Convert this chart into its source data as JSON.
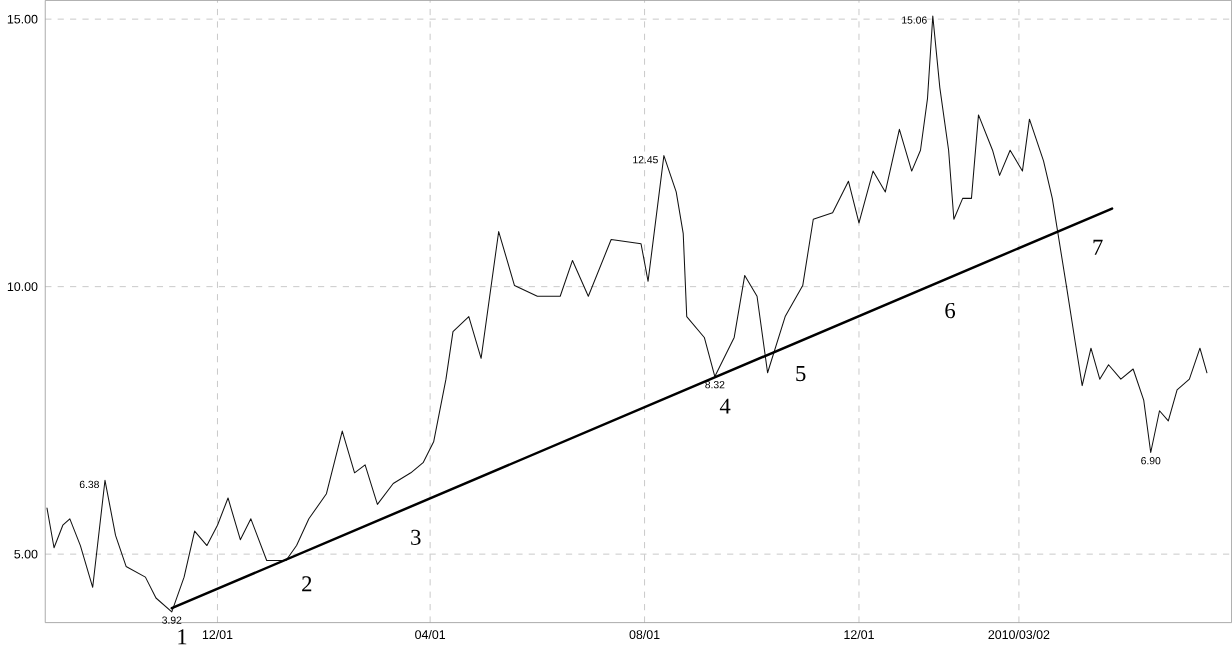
{
  "chart_data": {
    "type": "line",
    "xlim": [
      "2008-08-25",
      "2010-07-01"
    ],
    "ylim": [
      3.72,
      15.35
    ],
    "xticks": [
      {
        "value": "2008-12-01",
        "label": "12/01"
      },
      {
        "value": "2009-04-01",
        "label": "04/01"
      },
      {
        "value": "2009-08-01",
        "label": "08/01"
      },
      {
        "value": "2009-12-01",
        "label": "12/01"
      },
      {
        "value": "2010-03-02",
        "label": "2010/03/02"
      }
    ],
    "yticks": [
      {
        "value": 5,
        "label": "5.00"
      },
      {
        "value": 10,
        "label": "10.00"
      },
      {
        "value": 15,
        "label": "15.00"
      }
    ],
    "grid": true,
    "marker": "none",
    "line_style": "solid",
    "series": [
      {
        "color": "#111111",
        "x": [
          "2008-08-26",
          "2008-08-30",
          "2008-09-04",
          "2008-09-08",
          "2008-09-14",
          "2008-09-21",
          "2008-09-28",
          "2008-10-04",
          "2008-10-10",
          "2008-10-21",
          "2008-10-27",
          "2008-11-05",
          "2008-11-12",
          "2008-11-18",
          "2008-11-25",
          "2008-12-01",
          "2008-12-07",
          "2008-12-14",
          "2008-12-20",
          "2008-12-29",
          "2009-01-09",
          "2009-01-15",
          "2009-01-22",
          "2009-02-01",
          "2009-02-10",
          "2009-02-17",
          "2009-02-23",
          "2009-03-02",
          "2009-03-11",
          "2009-03-21",
          "2009-03-28",
          "2009-04-03",
          "2009-04-10",
          "2009-04-14",
          "2009-04-23",
          "2009-04-30",
          "2009-05-10",
          "2009-05-19",
          "2009-06-01",
          "2009-06-14",
          "2009-06-21",
          "2009-06-30",
          "2009-07-13",
          "2009-07-30",
          "2009-08-03",
          "2009-08-12",
          "2009-08-19",
          "2009-08-23",
          "2009-08-25",
          "2009-09-04",
          "2009-09-10",
          "2009-09-21",
          "2009-09-27",
          "2009-10-04",
          "2009-10-10",
          "2009-10-20",
          "2009-10-30",
          "2009-11-05",
          "2009-11-16",
          "2009-11-25",
          "2009-12-01",
          "2009-12-09",
          "2009-12-16",
          "2009-12-24",
          "2009-12-31",
          "2010-01-05",
          "2010-01-09",
          "2010-01-12",
          "2010-01-16",
          "2010-01-21",
          "2010-01-24",
          "2010-01-29",
          "2010-02-03",
          "2010-02-07",
          "2010-02-15",
          "2010-02-19",
          "2010-02-25",
          "2010-03-04",
          "2010-03-08",
          "2010-03-16",
          "2010-03-21",
          "2010-03-29",
          "2010-04-03",
          "2010-04-07",
          "2010-04-12",
          "2010-04-17",
          "2010-04-22",
          "2010-04-29",
          "2010-05-06",
          "2010-05-12",
          "2010-05-16",
          "2010-05-21",
          "2010-05-26",
          "2010-05-31",
          "2010-06-07",
          "2010-06-13",
          "2010-06-17"
        ],
        "values": [
          5.86,
          5.12,
          5.54,
          5.66,
          5.16,
          4.38,
          6.38,
          5.35,
          4.77,
          4.57,
          4.18,
          3.92,
          4.57,
          5.43,
          5.16,
          5.54,
          6.05,
          5.27,
          5.66,
          4.88,
          4.88,
          5.16,
          5.66,
          6.13,
          7.3,
          6.52,
          6.67,
          5.93,
          6.32,
          6.52,
          6.71,
          7.1,
          8.27,
          9.16,
          9.44,
          8.66,
          11.03,
          10.02,
          9.82,
          9.82,
          10.49,
          9.82,
          10.88,
          10.8,
          10.1,
          12.45,
          11.77,
          10.99,
          9.44,
          9.05,
          8.32,
          9.05,
          10.21,
          9.82,
          8.39,
          9.44,
          10.02,
          11.26,
          11.38,
          11.97,
          11.19,
          12.16,
          11.77,
          12.94,
          12.16,
          12.55,
          13.52,
          15.06,
          13.72,
          12.55,
          11.26,
          11.65,
          11.65,
          13.21,
          12.55,
          12.08,
          12.55,
          12.16,
          13.13,
          12.35,
          11.65,
          10.02,
          8.97,
          8.15,
          8.85,
          8.27,
          8.54,
          8.27,
          8.46,
          7.88,
          6.9,
          7.68,
          7.49,
          8.07,
          8.27,
          8.85,
          8.39
        ]
      },
      {
        "color": "#000000",
        "x": [
          "2008-11-05",
          "2010-04-24"
        ],
        "values": [
          3.99,
          11.46
        ]
      }
    ],
    "annotations": [
      {
        "text": "3.92",
        "x": "2008-11-05",
        "y": 3.92
      },
      {
        "text": "6.38",
        "x": "2008-09-28",
        "y": 6.38
      },
      {
        "text": "12.45",
        "x": "2009-08-12",
        "y": 12.45
      },
      {
        "text": "8.32",
        "x": "2009-09-10",
        "y": 8.32
      },
      {
        "text": "15.06",
        "x": "2010-01-12",
        "y": 15.06
      },
      {
        "text": "6.90",
        "x": "2010-05-16",
        "y": 6.9
      },
      {
        "text": "1",
        "x": "2008-11-05",
        "y": 3.99
      },
      {
        "text": "2",
        "x": "2009-01-15",
        "y": 4.98
      },
      {
        "text": "3",
        "x": "2009-03-18",
        "y": 5.85
      },
      {
        "text": "4",
        "x": "2009-09-10",
        "y": 8.3
      },
      {
        "text": "5",
        "x": "2009-10-23",
        "y": 8.91
      },
      {
        "text": "6",
        "x": "2010-01-16",
        "y": 10.09
      },
      {
        "text": "7",
        "x": "2010-04-10",
        "y": 11.27
      }
    ]
  }
}
